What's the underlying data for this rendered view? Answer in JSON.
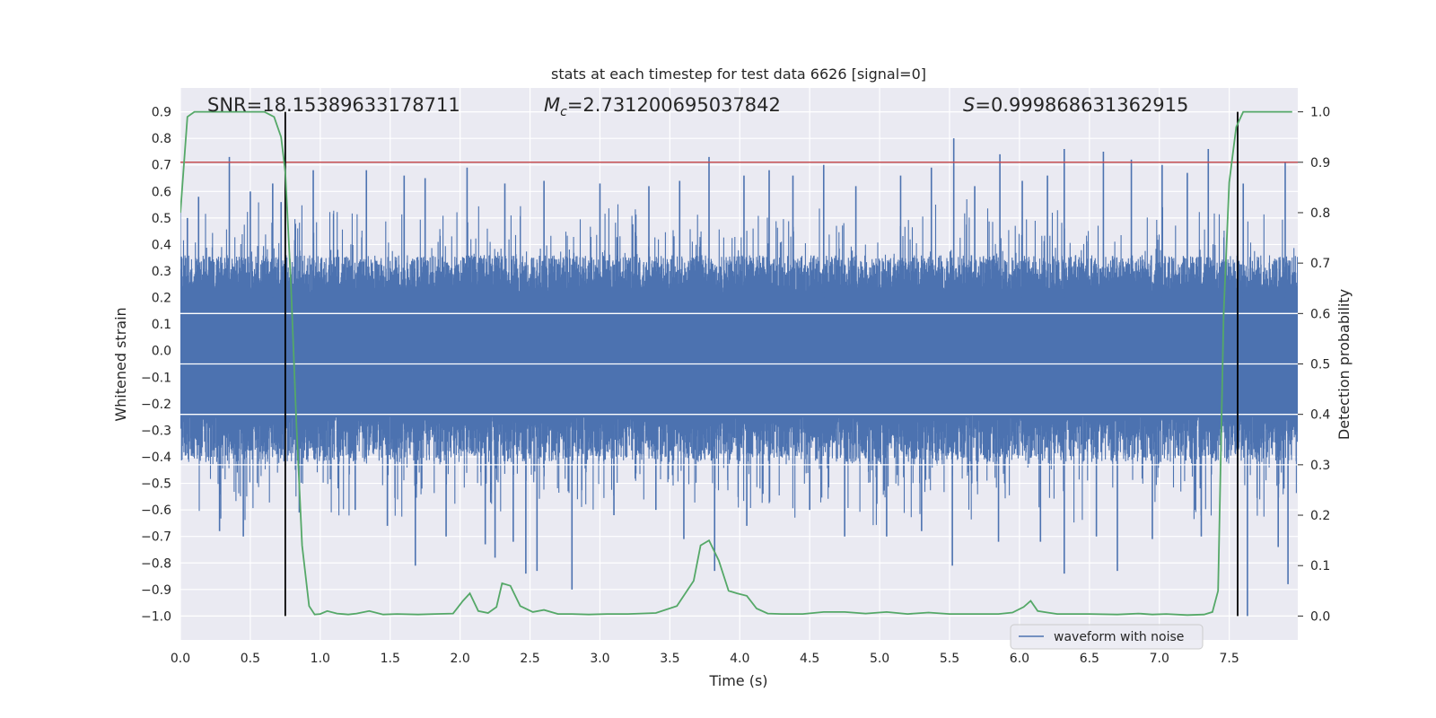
{
  "chart_data": {
    "type": "line",
    "title": "stats at each timestep for test data 6626 [signal=0]",
    "xlabel": "Time (s)",
    "ylabel_left": "Whitened strain",
    "ylabel_right": "Detection probability",
    "xlim": [
      0.0,
      7.99
    ],
    "ylim_left": [
      -1.09,
      0.99
    ],
    "ylim_right": [
      0.0,
      1.0
    ],
    "x_ticks": [
      "0.0",
      "0.5",
      "1.0",
      "1.5",
      "2.0",
      "2.5",
      "3.0",
      "3.5",
      "4.0",
      "4.5",
      "5.0",
      "5.5",
      "6.0",
      "6.5",
      "7.0",
      "7.5"
    ],
    "y_ticks_left": [
      "0.9",
      "0.8",
      "0.7",
      "0.6",
      "0.5",
      "0.4",
      "0.3",
      "0.2",
      "0.1",
      "0.0",
      "−0.1",
      "−0.2",
      "−0.3",
      "−0.4",
      "−0.5",
      "−0.6",
      "−0.7",
      "−0.8",
      "−0.9",
      "−1.0"
    ],
    "y_ticks_right": [
      "1.0",
      "0.9",
      "0.8",
      "0.7",
      "0.6",
      "0.5",
      "0.4",
      "0.3",
      "0.2",
      "0.1",
      "0.0"
    ],
    "threshold": 0.9,
    "vlines": [
      0.75,
      7.56
    ],
    "annotations": {
      "snr_label": "SNR=18.15389633178711",
      "mc_symbol": "M",
      "mc_sub": "c",
      "mc_value": "=2.731200695037842",
      "s_symbol": "S",
      "s_value": "=0.999868631362915"
    },
    "legend": "waveform with noise",
    "series": [
      {
        "name": "waveform with noise",
        "color": "#4c72b0",
        "envelope": "dense noise between about -0.4 and 0.35 (peaks to ~0.8 and ~-0.95)",
        "spikes_up": [
          [
            0.05,
            0.5
          ],
          [
            0.13,
            0.58
          ],
          [
            0.35,
            0.73
          ],
          [
            0.5,
            0.6
          ],
          [
            0.66,
            0.63
          ],
          [
            0.72,
            0.56
          ],
          [
            0.95,
            0.68
          ],
          [
            1.33,
            0.68
          ],
          [
            1.6,
            0.66
          ],
          [
            1.75,
            0.65
          ],
          [
            2.05,
            0.69
          ],
          [
            2.32,
            0.63
          ],
          [
            2.6,
            0.64
          ],
          [
            3.0,
            0.63
          ],
          [
            3.35,
            0.62
          ],
          [
            3.57,
            0.64
          ],
          [
            3.78,
            0.73
          ],
          [
            4.03,
            0.66
          ],
          [
            4.21,
            0.68
          ],
          [
            4.38,
            0.66
          ],
          [
            4.6,
            0.7
          ],
          [
            4.83,
            0.62
          ],
          [
            5.15,
            0.66
          ],
          [
            5.37,
            0.69
          ],
          [
            5.53,
            0.8
          ],
          [
            5.68,
            0.62
          ],
          [
            5.86,
            0.74
          ],
          [
            6.02,
            0.64
          ],
          [
            6.2,
            0.66
          ],
          [
            6.32,
            0.76
          ],
          [
            6.6,
            0.75
          ],
          [
            6.8,
            0.72
          ],
          [
            7.02,
            0.7
          ],
          [
            7.2,
            0.67
          ],
          [
            7.35,
            0.76
          ],
          [
            7.6,
            0.63
          ],
          [
            7.9,
            0.71
          ]
        ],
        "spikes_down": [
          [
            0.28,
            -0.68
          ],
          [
            0.45,
            -0.7
          ],
          [
            0.85,
            -0.61
          ],
          [
            1.25,
            -0.6
          ],
          [
            1.48,
            -0.66
          ],
          [
            1.68,
            -0.81
          ],
          [
            1.9,
            -0.7
          ],
          [
            2.18,
            -0.73
          ],
          [
            2.25,
            -0.78
          ],
          [
            2.38,
            -0.72
          ],
          [
            2.47,
            -0.84
          ],
          [
            2.55,
            -0.83
          ],
          [
            2.8,
            -0.9
          ],
          [
            3.1,
            -0.62
          ],
          [
            3.4,
            -0.6
          ],
          [
            3.6,
            -0.71
          ],
          [
            3.82,
            -0.83
          ],
          [
            4.05,
            -0.66
          ],
          [
            4.5,
            -0.6
          ],
          [
            4.75,
            -0.7
          ],
          [
            5.05,
            -0.7
          ],
          [
            5.3,
            -0.68
          ],
          [
            5.52,
            -0.81
          ],
          [
            5.85,
            -0.72
          ],
          [
            6.15,
            -0.72
          ],
          [
            6.32,
            -0.84
          ],
          [
            6.55,
            -0.7
          ],
          [
            6.7,
            -0.83
          ],
          [
            6.95,
            -0.71
          ],
          [
            7.3,
            -0.7
          ],
          [
            7.63,
            -1.0
          ],
          [
            7.85,
            -0.74
          ],
          [
            7.92,
            -0.88
          ]
        ]
      },
      {
        "name": "detection probability",
        "axis": "right",
        "color": "#55a868",
        "x": [
          0.0,
          0.05,
          0.1,
          0.2,
          0.3,
          0.4,
          0.5,
          0.6,
          0.67,
          0.72,
          0.75,
          0.79,
          0.83,
          0.87,
          0.92,
          0.96,
          1.0,
          1.05,
          1.12,
          1.2,
          1.26,
          1.35,
          1.45,
          1.55,
          1.7,
          1.82,
          1.95,
          2.02,
          2.07,
          2.13,
          2.2,
          2.26,
          2.3,
          2.36,
          2.43,
          2.52,
          2.6,
          2.7,
          2.8,
          2.92,
          3.05,
          3.2,
          3.4,
          3.55,
          3.67,
          3.72,
          3.78,
          3.85,
          3.92,
          3.98,
          4.05,
          4.12,
          4.2,
          4.3,
          4.45,
          4.6,
          4.75,
          4.9,
          5.05,
          5.2,
          5.35,
          5.5,
          5.7,
          5.85,
          5.95,
          6.03,
          6.08,
          6.13,
          6.2,
          6.27,
          6.35,
          6.5,
          6.7,
          6.85,
          6.95,
          7.05,
          7.2,
          7.32,
          7.38,
          7.42,
          7.46,
          7.5,
          7.55,
          7.6,
          7.65,
          7.7,
          7.8,
          7.9,
          7.95
        ],
        "y": [
          0.8,
          0.99,
          1.0,
          1.0,
          1.0,
          1.0,
          1.0,
          1.0,
          0.99,
          0.95,
          0.88,
          0.66,
          0.38,
          0.14,
          0.02,
          0.003,
          0.004,
          0.01,
          0.005,
          0.003,
          0.005,
          0.01,
          0.003,
          0.004,
          0.003,
          0.004,
          0.005,
          0.03,
          0.045,
          0.01,
          0.006,
          0.018,
          0.065,
          0.06,
          0.02,
          0.008,
          0.012,
          0.004,
          0.004,
          0.003,
          0.004,
          0.004,
          0.006,
          0.02,
          0.07,
          0.14,
          0.15,
          0.11,
          0.05,
          0.045,
          0.04,
          0.015,
          0.005,
          0.004,
          0.004,
          0.008,
          0.008,
          0.005,
          0.008,
          0.004,
          0.007,
          0.004,
          0.004,
          0.004,
          0.007,
          0.018,
          0.03,
          0.01,
          0.007,
          0.004,
          0.004,
          0.004,
          0.003,
          0.005,
          0.003,
          0.004,
          0.002,
          0.003,
          0.008,
          0.05,
          0.6,
          0.86,
          0.97,
          1.0,
          1.0,
          1.0,
          1.0,
          1.0,
          1.0
        ]
      }
    ],
    "colors": {
      "background": "#eaeaf2",
      "grid": "#ffffff",
      "threshold": "#c44e52",
      "vline": "#000000"
    }
  }
}
